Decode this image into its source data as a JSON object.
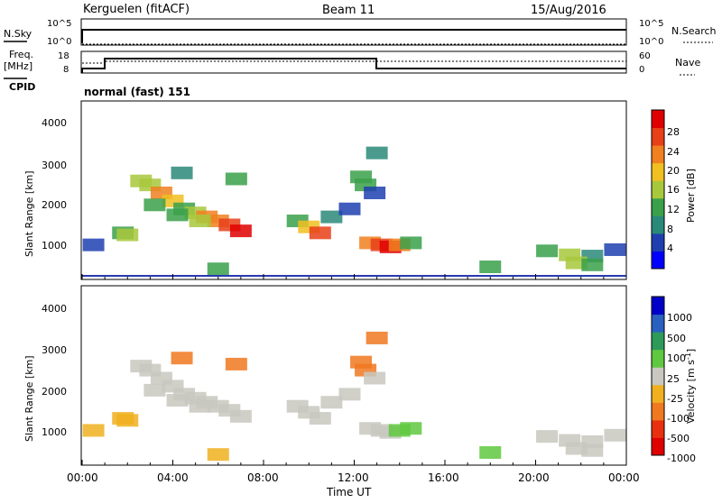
{
  "header": {
    "station": "Kerguelen (fitACF)",
    "beam": "Beam 11",
    "date": "15/Aug/2016"
  },
  "noise_panel": {
    "left_label": "N.Sky",
    "right_label": "N.Search",
    "left_ticks": [
      "10^5",
      "10^0"
    ],
    "right_ticks": [
      "10^5",
      "10^0"
    ]
  },
  "freq_panel": {
    "left_label_1": "Freq.",
    "left_label_2": "[MHz]",
    "left_ticks": [
      "18",
      "8"
    ],
    "right_label": "Nave",
    "right_ticks": [
      "60",
      "0"
    ]
  },
  "cpid": {
    "label": "CPID",
    "value": "normal (fast) 151"
  },
  "power_panel": {
    "ylabel": "Slant Range [km]",
    "yticks": [
      "4000",
      "3000",
      "2000",
      "1000"
    ],
    "colorbar_label": "Power [dB]",
    "colorbar_ticks": [
      "28",
      "24",
      "20",
      "16",
      "12",
      "8",
      "4"
    ]
  },
  "velocity_panel": {
    "ylabel": "Slant Range [km]",
    "yticks": [
      "4000",
      "3000",
      "2000",
      "1000"
    ],
    "colorbar_label": "Velocity [m s",
    "colorbar_label_sup": "-1",
    "colorbar_label_end": "]",
    "colorbar_ticks": [
      "1000",
      "500",
      "100",
      "25",
      "-25",
      "-100",
      "-500",
      "-1000"
    ]
  },
  "xaxis": {
    "label": "Time UT",
    "ticks": [
      "00:00",
      "04:00",
      "08:00",
      "12:00",
      "16:00",
      "20:00",
      "00:00"
    ]
  },
  "colors": {
    "power_scale": [
      "#0000ff",
      "#1f3fb0",
      "#2a8a7a",
      "#3aa04a",
      "#a8c83c",
      "#f0c020",
      "#f08020",
      "#e84018",
      "#e00000"
    ],
    "velocity_scale": [
      "#0000c8",
      "#2a60c0",
      "#2e9a5a",
      "#60c840",
      "#c8c8c0",
      "#f0b020",
      "#f07820",
      "#e83010",
      "#e00000"
    ]
  },
  "chart_data": [
    {
      "type": "line",
      "title": "",
      "xlabel": "Time UT",
      "ylabel": "N.Sky",
      "ylim": [
        1,
        100000
      ],
      "log_scale": true,
      "series": [
        {
          "name": "N.Sky",
          "x": [
            0,
            0.05,
            24
          ],
          "y": [
            1,
            30000,
            30000
          ]
        },
        {
          "name": "N.Search",
          "x": [
            0,
            24
          ],
          "y": [
            1,
            1
          ]
        }
      ]
    },
    {
      "type": "line",
      "xlabel": "Time UT",
      "ylabel": "Freq. [MHz]",
      "ylim": [
        8,
        18
      ],
      "series": [
        {
          "name": "Freq.",
          "x": [
            0,
            1.0,
            1.0,
            13.0,
            13.0,
            24
          ],
          "y": [
            9.2,
            9.2,
            12.2,
            12.2,
            9.2,
            9.2
          ]
        },
        {
          "name": "Nave",
          "x": [
            0,
            1.0,
            1.0,
            24
          ],
          "y": [
            40,
            40,
            45,
            45
          ]
        }
      ]
    },
    {
      "type": "heatmap",
      "title": "",
      "xlabel": "Time UT",
      "ylabel": "Slant Range [km]",
      "colorbar": "Power [dB]",
      "xlim": [
        0,
        24
      ],
      "ylim": [
        180,
        4600
      ],
      "zlim": [
        0,
        30
      ],
      "cells": [
        [
          2.6,
          2600,
          16
        ],
        [
          3.0,
          2500,
          14
        ],
        [
          3.5,
          2300,
          20
        ],
        [
          4.0,
          2100,
          18
        ],
        [
          4.5,
          1900,
          12
        ],
        [
          5.0,
          1800,
          14
        ],
        [
          5.5,
          1700,
          20
        ],
        [
          6.0,
          1600,
          22
        ],
        [
          6.5,
          1500,
          24
        ],
        [
          7.0,
          1350,
          28
        ],
        [
          3.2,
          2000,
          12
        ],
        [
          4.2,
          1750,
          10
        ],
        [
          5.2,
          1600,
          14
        ],
        [
          4.4,
          2800,
          8
        ],
        [
          6.8,
          2650,
          12
        ],
        [
          1.8,
          1300,
          12
        ],
        [
          2.0,
          1250,
          16
        ],
        [
          9.5,
          1600,
          12
        ],
        [
          10.0,
          1450,
          18
        ],
        [
          10.5,
          1300,
          26
        ],
        [
          11.0,
          1700,
          8
        ],
        [
          11.8,
          1900,
          6
        ],
        [
          12.3,
          2700,
          12
        ],
        [
          12.5,
          2500,
          10
        ],
        [
          13.0,
          3300,
          8
        ],
        [
          12.7,
          1050,
          20
        ],
        [
          13.2,
          1000,
          24
        ],
        [
          13.6,
          950,
          28
        ],
        [
          14.0,
          1000,
          22
        ],
        [
          14.5,
          1050,
          12
        ],
        [
          12.9,
          2300,
          6
        ],
        [
          20.5,
          850,
          12
        ],
        [
          21.5,
          750,
          16
        ],
        [
          22.5,
          720,
          8
        ],
        [
          23.5,
          880,
          6
        ],
        [
          21.8,
          550,
          16
        ],
        [
          22.5,
          500,
          12
        ],
        [
          0.5,
          1000,
          6
        ],
        [
          18.0,
          450,
          12
        ],
        [
          6.0,
          400,
          10
        ]
      ]
    },
    {
      "type": "heatmap",
      "title": "",
      "xlabel": "Time UT",
      "ylabel": "Slant Range [km]",
      "colorbar": "Velocity [m s-1]",
      "xlim": [
        0,
        24
      ],
      "ylim": [
        180,
        4600
      ],
      "zlim": [
        -1000,
        1000
      ],
      "cells": [
        [
          2.6,
          2600,
          0
        ],
        [
          3.0,
          2500,
          0
        ],
        [
          3.5,
          2300,
          0
        ],
        [
          4.0,
          2100,
          0
        ],
        [
          4.5,
          1900,
          0
        ],
        [
          5.0,
          1800,
          0
        ],
        [
          5.5,
          1700,
          0
        ],
        [
          6.0,
          1600,
          0
        ],
        [
          6.5,
          1500,
          0
        ],
        [
          7.0,
          1350,
          0
        ],
        [
          3.2,
          2000,
          0
        ],
        [
          4.2,
          1750,
          0
        ],
        [
          5.2,
          1600,
          0
        ],
        [
          4.4,
          2800,
          -400
        ],
        [
          6.8,
          2650,
          -400
        ],
        [
          1.8,
          1300,
          -80
        ],
        [
          2.0,
          1250,
          -80
        ],
        [
          9.5,
          1600,
          0
        ],
        [
          10.0,
          1450,
          0
        ],
        [
          10.5,
          1300,
          0
        ],
        [
          11.0,
          1700,
          0
        ],
        [
          11.8,
          1900,
          0
        ],
        [
          12.3,
          2700,
          -400
        ],
        [
          12.5,
          2500,
          -300
        ],
        [
          13.0,
          3300,
          -150
        ],
        [
          12.7,
          1050,
          0
        ],
        [
          13.2,
          1000,
          0
        ],
        [
          13.6,
          950,
          0
        ],
        [
          14.0,
          1000,
          60
        ],
        [
          14.5,
          1050,
          60
        ],
        [
          12.9,
          2300,
          0
        ],
        [
          20.5,
          850,
          0
        ],
        [
          21.5,
          750,
          0
        ],
        [
          22.5,
          720,
          0
        ],
        [
          23.5,
          880,
          0
        ],
        [
          21.8,
          550,
          0
        ],
        [
          22.5,
          500,
          0
        ],
        [
          0.5,
          1000,
          -80
        ],
        [
          18.0,
          450,
          60
        ],
        [
          6.0,
          400,
          -60
        ]
      ]
    }
  ]
}
